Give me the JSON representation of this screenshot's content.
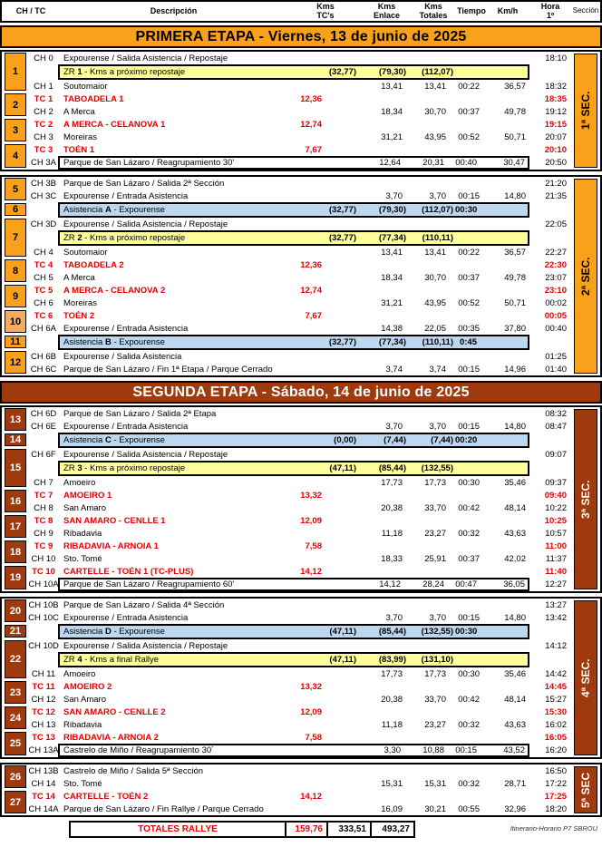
{
  "page": {
    "footer_note": "Itinerario-Horario  P7 SBROU",
    "colors": {
      "orange": "#F9A11B",
      "light_orange": "#F2AB63",
      "brick": "#9E3A0D",
      "yellow": "#FFFF9B",
      "blue": "#BDD7EE",
      "red": "#E60000"
    }
  },
  "header": {
    "ch_tc": "CH / TC",
    "descripcion": "Descripción",
    "kms_tcs_1": "Kms",
    "kms_tcs_2": "TC's",
    "kms_enlace_1": "Kms",
    "kms_enlace_2": "Enlace",
    "kms_totales_1": "Kms",
    "kms_totales_2": "Totales",
    "tiempo": "Tiempo",
    "kmh": "Km/h",
    "hora_1": "Hora",
    "hora_2": "1º",
    "seccion": "Sección"
  },
  "stages": [
    {
      "title": "PRIMERA ETAPA - Viernes, 13 de junio de 2025",
      "theme": "orange",
      "blocks": [
        {
          "section": "1ª SEC.",
          "groups": [
            {
              "n": "1",
              "r0": 0,
              "s": 3
            },
            {
              "n": "2",
              "r0": 3,
              "s": 2
            },
            {
              "n": "3",
              "r0": 5,
              "s": 2
            },
            {
              "n": "4",
              "r0": 7,
              "s": 2
            }
          ],
          "rows": [
            {
              "t": "ch",
              "code": "CH 0",
              "d": "Expourense / Salida Asistencia / Repostaje",
              "h": "18:10"
            },
            {
              "t": "zr",
              "dp": "ZR ",
              "db": "1",
              "ds": " - Kms a próximo repostaje",
              "k1": "(32,77)",
              "k2": "(79,30)",
              "k3": "(112,07)"
            },
            {
              "t": "ch",
              "code": "CH 1",
              "d": "Soutomaior",
              "k2": "13,41",
              "k3": "13,41",
              "ti": "00:22",
              "v": "36,57",
              "h": "18:32"
            },
            {
              "t": "tc",
              "code": "TC 1",
              "d": "TABOADELA 1",
              "k1": "12,36",
              "h": "18:35"
            },
            {
              "t": "ch",
              "code": "CH 2",
              "d": "A Merca",
              "k2": "18,34",
              "k3": "30,70",
              "ti": "00:37",
              "v": "49,78",
              "h": "19:12"
            },
            {
              "t": "tc",
              "code": "TC 2",
              "d": "A MERCA - CELANOVA 1",
              "k1": "12,74",
              "h": "19:15"
            },
            {
              "t": "ch",
              "code": "CH 3",
              "d": "Moreiras",
              "k2": "31,21",
              "k3": "43,95",
              "ti": "00:52",
              "v": "50,71",
              "h": "20:07"
            },
            {
              "t": "tc",
              "code": "TC 3",
              "d": "TOÉN 1",
              "k1": "7,67",
              "h": "20:10"
            },
            {
              "t": "chb",
              "code": "CH 3A",
              "d": "Parque de San Lázaro / Reagrupamiento 30'",
              "k2": "12,64",
              "k3": "20,31",
              "ti": "00:40",
              "v": "30,47",
              "h": "20:50"
            }
          ]
        },
        {
          "section": "2ª SEC.",
          "groups": [
            {
              "n": "5",
              "r0": 0,
              "s": 2
            },
            {
              "n": "6",
              "r0": 2,
              "s": 1
            },
            {
              "n": "7",
              "r0": 3,
              "s": 3
            },
            {
              "n": "8",
              "r0": 6,
              "s": 2
            },
            {
              "n": "9",
              "r0": 8,
              "s": 2
            },
            {
              "n": "10",
              "r0": 10,
              "s": 2,
              "light": true
            },
            {
              "n": "11",
              "r0": 12,
              "s": 1
            },
            {
              "n": "12",
              "r0": 13,
              "s": 2
            }
          ],
          "rows": [
            {
              "t": "ch",
              "code": "CH 3B",
              "d": "Parque de San Lázaro / Salida 2ª Sección",
              "h": "21:20"
            },
            {
              "t": "ch",
              "code": "CH 3C",
              "d": "Expourense / Entrada Asistencia",
              "k2": "3,70",
              "k3": "3,70",
              "ti": "00:15",
              "v": "14,80",
              "h": "21:35"
            },
            {
              "t": "as",
              "dp": "Asistencia ",
              "db": "A",
              "ds": " - Expourense",
              "k1": "(32,77)",
              "k2": "(79,30)",
              "k3": "(112,07)",
              "ti": "00:30"
            },
            {
              "t": "ch",
              "code": "CH 3D",
              "d": "Expourense / Salida Asistencia / Repostaje",
              "h": "22:05"
            },
            {
              "t": "zr",
              "dp": "ZR ",
              "db": "2",
              "ds": " - Kms a próximo repostaje",
              "k1": "(32,77)",
              "k2": "(77,34)",
              "k3": "(110,11)"
            },
            {
              "t": "ch",
              "code": "CH 4",
              "d": "Soutomaior",
              "k2": "13,41",
              "k3": "13,41",
              "ti": "00:22",
              "v": "36,57",
              "h": "22:27"
            },
            {
              "t": "tc",
              "code": "TC 4",
              "d": "TABOADELA 2",
              "k1": "12,36",
              "h": "22:30"
            },
            {
              "t": "ch",
              "code": "CH 5",
              "d": "A Merca",
              "k2": "18,34",
              "k3": "30,70",
              "ti": "00:37",
              "v": "49,78",
              "h": "23:07"
            },
            {
              "t": "tc",
              "code": "TC 5",
              "d": "A MERCA - CELANOVA 2",
              "k1": "12,74",
              "h": "23:10"
            },
            {
              "t": "ch",
              "code": "CH 6",
              "d": "Moreiras",
              "k2": "31,21",
              "k3": "43,95",
              "ti": "00:52",
              "v": "50,71",
              "h": "00:02"
            },
            {
              "t": "tc",
              "code": "TC 6",
              "d": "TOÉN 2",
              "k1": "7,67",
              "h": "00:05"
            },
            {
              "t": "ch",
              "code": "CH 6A",
              "d": "Expourense / Entrada Asistencia",
              "k2": "14,38",
              "k3": "22,05",
              "ti": "00:35",
              "v": "37,80",
              "h": "00:40"
            },
            {
              "t": "as",
              "dp": "Asistencia ",
              "db": "B",
              "ds": " - Expourense",
              "k1": "(32,77)",
              "k2": "(77,34)",
              "k3": "(110,11)",
              "ti": "0:45"
            },
            {
              "t": "ch",
              "code": "CH 6B",
              "d": "Expourense / Salida Asistencia",
              "h": "01:25"
            },
            {
              "t": "ch",
              "code": "CH 6C",
              "d": "Parque de San Lázaro / Fin 1ª Etapa / Parque Cerrado",
              "k2": "3,74",
              "k3": "3,74",
              "ti": "00:15",
              "v": "14,96",
              "h": "01:40"
            }
          ]
        }
      ]
    },
    {
      "title": "SEGUNDA ETAPA - Sábado, 14 de junio de 2025",
      "theme": "brick",
      "blocks": [
        {
          "section": "3ª SEC.",
          "groups": [
            {
              "n": "13",
              "r0": 0,
              "s": 2
            },
            {
              "n": "14",
              "r0": 2,
              "s": 1
            },
            {
              "n": "15",
              "r0": 3,
              "s": 3
            },
            {
              "n": "16",
              "r0": 6,
              "s": 2
            },
            {
              "n": "17",
              "r0": 8,
              "s": 2
            },
            {
              "n": "18",
              "r0": 10,
              "s": 2
            },
            {
              "n": "19",
              "r0": 12,
              "s": 2
            }
          ],
          "rows": [
            {
              "t": "ch",
              "code": "CH 6D",
              "d": "Parque de San Lázaro / Salida 2ª Etapa",
              "h": "08:32"
            },
            {
              "t": "ch",
              "code": "CH 6E",
              "d": "Expourense / Entrada Asistencia",
              "k2": "3,70",
              "k3": "3,70",
              "ti": "00:15",
              "v": "14,80",
              "h": "08:47"
            },
            {
              "t": "as",
              "dp": "Asistencia ",
              "db": "C",
              "ds": " - Expourense",
              "k1": "(0,00)",
              "k2": "(7,44)",
              "k3": "(7,44)",
              "ti": "00:20"
            },
            {
              "t": "ch",
              "code": "CH 6F",
              "d": "Expourense / Salida Asistencia / Repostaje",
              "h": "09:07"
            },
            {
              "t": "zr",
              "dp": "ZR ",
              "db": "3",
              "ds": " - Kms a próximo repostaje",
              "k1": "(47,11)",
              "k2": "(85,44)",
              "k3": "(132,55)"
            },
            {
              "t": "ch",
              "code": "CH 7",
              "d": "Amoeiro",
              "k2": "17,73",
              "k3": "17,73",
              "ti": "00:30",
              "v": "35,46",
              "h": "09:37"
            },
            {
              "t": "tc",
              "code": "TC 7",
              "d": "AMOEIRO 1",
              "k1": "13,32",
              "h": "09:40"
            },
            {
              "t": "ch",
              "code": "CH 8",
              "d": "San Amaro",
              "k2": "20,38",
              "k3": "33,70",
              "ti": "00:42",
              "v": "48,14",
              "h": "10:22"
            },
            {
              "t": "tc",
              "code": "TC 8",
              "d": "SAN AMARO - CENLLE 1",
              "k1": "12,09",
              "h": "10:25"
            },
            {
              "t": "ch",
              "code": "CH 9",
              "d": "Ribadavia",
              "k2": "11,18",
              "k3": "23,27",
              "ti": "00:32",
              "v": "43,63",
              "h": "10:57"
            },
            {
              "t": "tc",
              "code": "TC 9",
              "d": "RIBADAVIA - ARNOIA 1",
              "k1": "7,58",
              "h": "11:00"
            },
            {
              "t": "ch",
              "code": "CH 10",
              "d": "Sto. Tomé",
              "k2": "18,33",
              "k3": "25,91",
              "ti": "00:37",
              "v": "42,02",
              "h": "11:37"
            },
            {
              "t": "tc",
              "code": "TC 10",
              "d": "CARTELLE - TOÉN 1 (TC-PLUS)",
              "k1": "14,12",
              "h": "11:40"
            },
            {
              "t": "chb",
              "code": "CH 10A",
              "d": "Parque de San Lázaro / Reagrupamiento 60'",
              "k2": "14,12",
              "k3": "28,24",
              "ti": "00:47",
              "v": "36,05",
              "h": "12:27"
            }
          ]
        },
        {
          "section": "4ª SEC.",
          "groups": [
            {
              "n": "20",
              "r0": 0,
              "s": 2
            },
            {
              "n": "21",
              "r0": 2,
              "s": 1
            },
            {
              "n": "22",
              "r0": 3,
              "s": 3
            },
            {
              "n": "23",
              "r0": 6,
              "s": 2
            },
            {
              "n": "24",
              "r0": 8,
              "s": 2
            },
            {
              "n": "25",
              "r0": 10,
              "s": 2
            }
          ],
          "rows": [
            {
              "t": "ch",
              "code": "CH 10B",
              "d": "Parque de San Lázaro / Salida 4ª Sección",
              "h": "13:27"
            },
            {
              "t": "ch",
              "code": "CH 10C",
              "d": "Expourense / Entrada Asistencia",
              "k2": "3,70",
              "k3": "3,70",
              "ti": "00:15",
              "v": "14,80",
              "h": "13:42"
            },
            {
              "t": "as",
              "dp": "Asistencia ",
              "db": "D",
              "ds": " - Expourense",
              "k1": "(47,11)",
              "k2": "(85,44)",
              "k3": "(132,55)",
              "ti": "00:30"
            },
            {
              "t": "ch",
              "code": "CH 10D",
              "d": "Expourense / Salida Asistencia / Repostaje",
              "h": "14:12"
            },
            {
              "t": "zr",
              "dp": "ZR ",
              "db": "4",
              "ds": " - Kms a final Rallye",
              "k1": "(47,11)",
              "k2": "(83,99)",
              "k3": "(131,10)"
            },
            {
              "t": "ch",
              "code": "CH 11",
              "d": "Amoeiro",
              "k2": "17,73",
              "k3": "17,73",
              "ti": "00:30",
              "v": "35,46",
              "h": "14:42"
            },
            {
              "t": "tc",
              "code": "TC 11",
              "d": "AMOEIRO 2",
              "k1": "13,32",
              "h": "14:45"
            },
            {
              "t": "ch",
              "code": "CH 12",
              "d": "San Amaro",
              "k2": "20,38",
              "k3": "33,70",
              "ti": "00:42",
              "v": "48,14",
              "h": "15:27"
            },
            {
              "t": "tc",
              "code": "TC 12",
              "d": "SAN AMARO - CENLLE 2",
              "k1": "12,09",
              "h": "15:30"
            },
            {
              "t": "ch",
              "code": "CH 13",
              "d": "Ribadavia",
              "k2": "11,18",
              "k3": "23,27",
              "ti": "00:32",
              "v": "43,63",
              "h": "16:02"
            },
            {
              "t": "tc",
              "code": "TC 13",
              "d": "RIBADAVIA - ARNOIA 2",
              "k1": "7,58",
              "h": "16:05"
            },
            {
              "t": "chb",
              "code": "CH 13A",
              "d": "Castrelo de Miño / Reagrupamiento 30´",
              "k2": "3,30",
              "k3": "10,88",
              "ti": "00:15",
              "v": "43,52",
              "h": "16:20"
            }
          ]
        },
        {
          "section": "5ª SEC",
          "groups": [
            {
              "n": "26",
              "r0": 0,
              "s": 2
            },
            {
              "n": "27",
              "r0": 2,
              "s": 2
            }
          ],
          "rows": [
            {
              "t": "ch",
              "code": "CH 13B",
              "d": "Castrelo de Miño / Salida 5ª Sección",
              "h": "16:50"
            },
            {
              "t": "ch",
              "code": "CH 14",
              "d": "Sto. Tomé",
              "k2": "15,31",
              "k3": "15,31",
              "ti": "00:32",
              "v": "28,71",
              "h": "17:22"
            },
            {
              "t": "tc",
              "code": "TC 14",
              "d": "CARTELLE - TOÉN 2",
              "k1": "14,12",
              "h": "17:25"
            },
            {
              "t": "ch",
              "code": "CH 14A",
              "d": "Parque de San Lázaro / Fin Rallye / Parque Cerrado",
              "k2": "16,09",
              "k3": "30,21",
              "ti": "00:55",
              "v": "32,96",
              "h": "18:20"
            }
          ]
        }
      ]
    }
  ],
  "totals": {
    "label": "TOTALES RALLYE",
    "kms_tcs": "159,76",
    "kms_enlace": "333,51",
    "kms_totales": "493,27"
  }
}
